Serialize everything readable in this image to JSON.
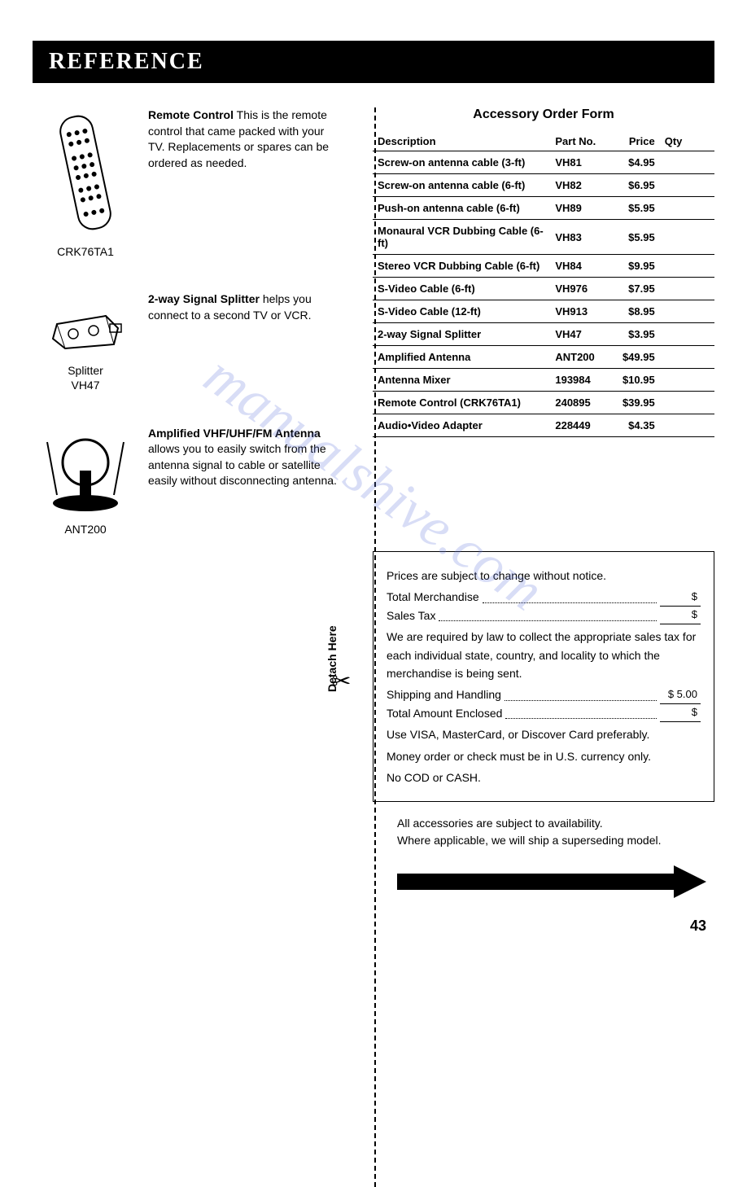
{
  "header": "REFERENCE",
  "watermark": "manualshive.com",
  "products": [
    {
      "caption": "CRK76TA1",
      "bold": "Remote Control",
      "text": " This is the remote control that came packed with your TV. Replacements or spares can be ordered as needed."
    },
    {
      "caption": "Splitter\nVH47",
      "bold": "2-way Signal Splitter",
      "text": " helps you connect to a second TV or VCR."
    },
    {
      "caption": "ANT200",
      "bold": "Amplified VHF/UHF/FM Antenna",
      "text": " allows you to easily switch from the antenna signal to cable or satellite easily without disconnecting antenna."
    }
  ],
  "order_form": {
    "title": "Accessory Order Form",
    "headers": {
      "desc": "Description",
      "part": "Part No.",
      "price": "Price",
      "qty": "Qty"
    },
    "rows": [
      {
        "desc": "Screw-on antenna cable (3-ft)",
        "part": "VH81",
        "price": "$4.95"
      },
      {
        "desc": "Screw-on antenna cable (6-ft)",
        "part": "VH82",
        "price": "$6.95"
      },
      {
        "desc": "Push-on antenna cable (6-ft)",
        "part": "VH89",
        "price": "$5.95"
      },
      {
        "desc": "Monaural VCR Dubbing Cable (6-ft)",
        "part": "VH83",
        "price": "$5.95"
      },
      {
        "desc": "Stereo VCR Dubbing Cable (6-ft)",
        "part": "VH84",
        "price": "$9.95"
      },
      {
        "desc": "S-Video Cable (6-ft)",
        "part": "VH976",
        "price": "$7.95"
      },
      {
        "desc": "S-Video Cable (12-ft)",
        "part": "VH913",
        "price": "$8.95"
      },
      {
        "desc": "2-way Signal Splitter",
        "part": "VH47",
        "price": "$3.95"
      },
      {
        "desc": "Amplified Antenna",
        "part": "ANT200",
        "price": "$49.95"
      },
      {
        "desc": "Antenna Mixer",
        "part": "193984",
        "price": "$10.95"
      },
      {
        "desc": "Remote Control (CRK76TA1)",
        "part": "240895",
        "price": "$39.95"
      },
      {
        "desc": "Audio•Video Adapter",
        "part": "228449",
        "price": "$4.35"
      }
    ]
  },
  "price_box": {
    "notice": "Prices are subject to change without notice.",
    "merchandise": "Total Merchandise",
    "merchandise_amt": "$",
    "tax": "Sales Tax",
    "tax_amt": "$",
    "tax_note": "We are required by law to collect the appropriate sales tax for each individual state, country, and locality to which the merchandise is being sent.",
    "shipping": "Shipping and Handling",
    "shipping_amt": "$   5.00",
    "total": "Total Amount Enclosed",
    "total_amt": "$",
    "cc_note": "Use VISA, MasterCard, or Discover Card preferably.",
    "check_note": "Money order or check must be in U.S. currency only.",
    "cod_note": "No COD or CASH."
  },
  "footer": {
    "line1": "All accessories are subject to availability.",
    "line2": "Where applicable, we will ship a superseding model."
  },
  "detach": "Detach Here",
  "page": "43"
}
